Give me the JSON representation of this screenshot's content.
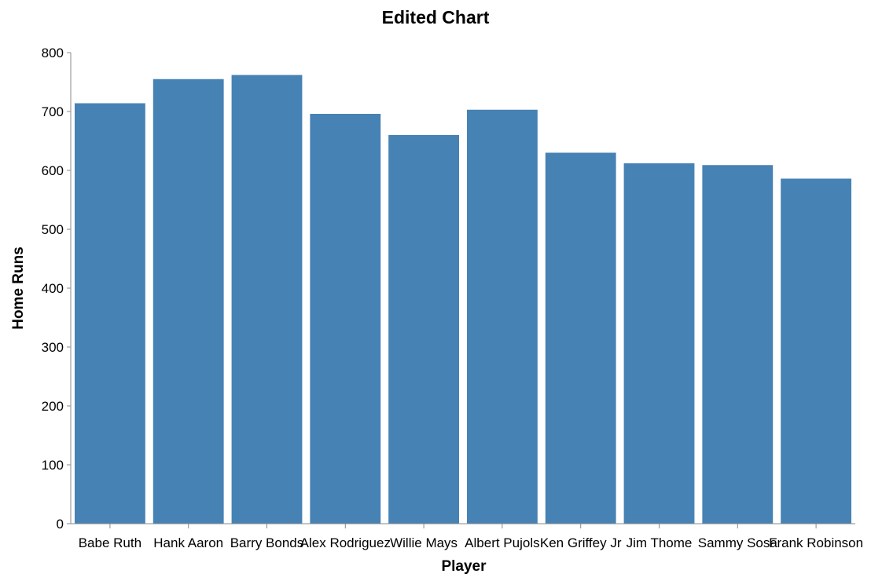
{
  "chart_data": {
    "type": "bar",
    "title": "Edited Chart",
    "xlabel": "Player",
    "ylabel": "Home Runs",
    "categories": [
      "Babe Ruth",
      "Hank Aaron",
      "Barry Bonds",
      "Alex Rodriguez",
      "Willie Mays",
      "Albert Pujols",
      "Ken Griffey Jr",
      "Jim Thome",
      "Sammy Sosa",
      "Frank Robinson"
    ],
    "values": [
      714,
      755,
      762,
      696,
      660,
      703,
      630,
      612,
      609,
      586
    ],
    "ylim": [
      0,
      800
    ],
    "yticks": [
      0,
      100,
      200,
      300,
      400,
      500,
      600,
      700,
      800
    ],
    "grid": false,
    "bar_color": "#4682b4",
    "axis_color": "#888888"
  }
}
